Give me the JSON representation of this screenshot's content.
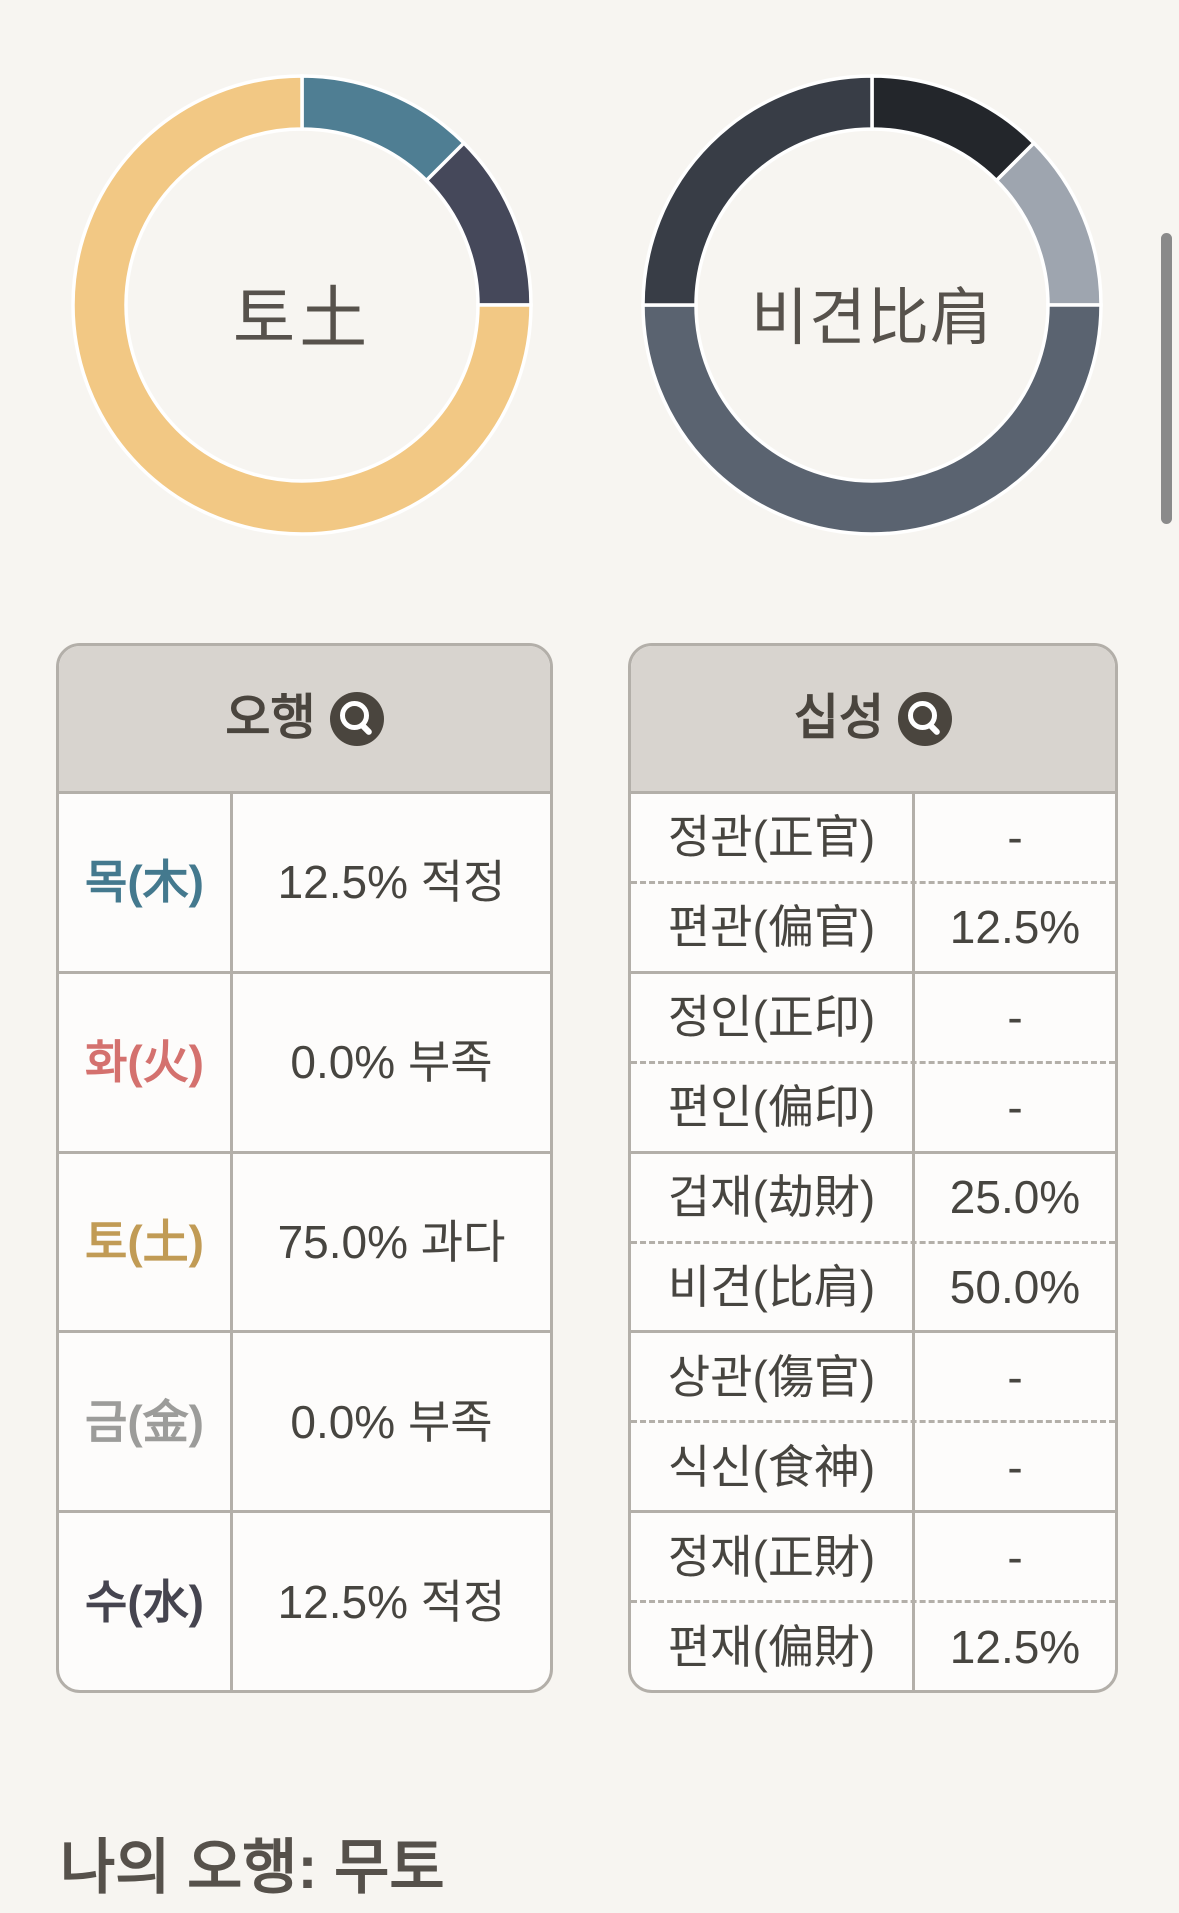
{
  "colors": {
    "background": "#f7f5f1",
    "card_background": "#fdfcfb",
    "card_border": "#b3afa9",
    "header_background": "#d8d4cf",
    "text": "#474540",
    "header_text": "#4a453e",
    "donut_gap": "#ffffff",
    "scrollbar": "#8a8a8a"
  },
  "chart_data": [
    {
      "type": "donut",
      "center_label": "토土",
      "start_angle_deg": 0,
      "outer_radius": 231,
      "inner_radius": 176,
      "segments": [
        {
          "label": "목(木)",
          "value": 12.5,
          "color": "#4f7e93"
        },
        {
          "label": "수(水)",
          "value": 12.5,
          "color": "#45485a"
        },
        {
          "label": "토(土)",
          "value": 75.0,
          "color": "#f2c884"
        }
      ]
    },
    {
      "type": "donut",
      "center_label": "비견比肩",
      "start_angle_deg": 0,
      "outer_radius": 231,
      "inner_radius": 176,
      "segments": [
        {
          "label": "편관(偏官)",
          "value": 12.5,
          "color": "#23262b"
        },
        {
          "label": "편재(偏財)",
          "value": 12.5,
          "color": "#9ea5af"
        },
        {
          "label": "비견(比肩)",
          "value": 50.0,
          "color": "#5a6370"
        },
        {
          "label": "겁재(劫財)",
          "value": 25.0,
          "color": "#383d46"
        }
      ]
    }
  ],
  "tables": {
    "ohaeng": {
      "header": "오행",
      "rows": [
        {
          "label": "목(木)",
          "label_color": "#44798e",
          "value": "12.5% 적정"
        },
        {
          "label": "화(火)",
          "label_color": "#d4716e",
          "value": "0.0% 부족"
        },
        {
          "label": "토(土)",
          "label_color": "#c19b55",
          "value": "75.0% 과다"
        },
        {
          "label": "금(金)",
          "label_color": "#9c9c9a",
          "value": "0.0% 부족"
        },
        {
          "label": "수(水)",
          "label_color": "#45444f",
          "value": "12.5% 적정"
        }
      ]
    },
    "sipseong": {
      "header": "십성",
      "rows": [
        {
          "label": "정관(正官)",
          "value": "-"
        },
        {
          "label": "편관(偏官)",
          "value": "12.5%"
        },
        {
          "label": "정인(正印)",
          "value": "-"
        },
        {
          "label": "편인(偏印)",
          "value": "-"
        },
        {
          "label": "겁재(劫財)",
          "value": "25.0%"
        },
        {
          "label": "비견(比肩)",
          "value": "50.0%"
        },
        {
          "label": "상관(傷官)",
          "value": "-"
        },
        {
          "label": "식신(食神)",
          "value": "-"
        },
        {
          "label": "정재(正財)",
          "value": "-"
        },
        {
          "label": "편재(偏財)",
          "value": "12.5%"
        }
      ]
    }
  },
  "footer": {
    "title": "나의 오행: 무토"
  }
}
